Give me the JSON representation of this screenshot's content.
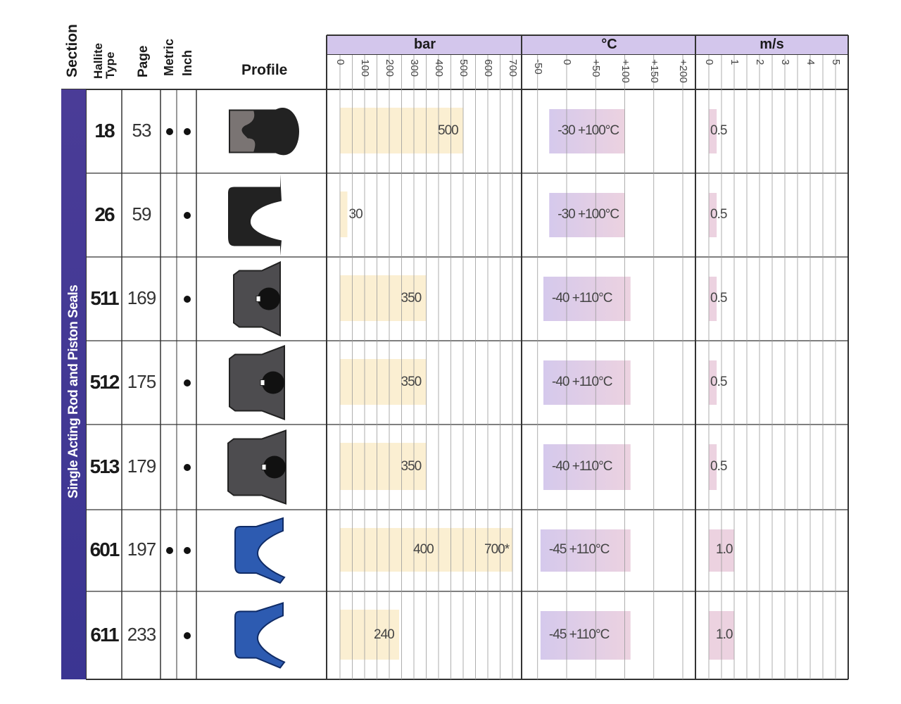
{
  "headers": {
    "section": "Section",
    "hallite_type": "Hallite Type",
    "page": "Page",
    "metric": "Metric",
    "inch": "Inch",
    "profile": "Profile",
    "bar": "bar",
    "temp": "°C",
    "speed": "m/s"
  },
  "section_label": "Single Acting Rod and Piston Seals",
  "bar_ticks": [
    "0",
    "100",
    "200",
    "300",
    "400",
    "500",
    "600",
    "700"
  ],
  "temp_ticks": [
    "-50",
    "0",
    "+50",
    "+100",
    "+150",
    "+200"
  ],
  "speed_ticks": [
    "0",
    "1",
    "2",
    "3",
    "4",
    "5"
  ],
  "colors": {
    "pressure_bar": "#fbefd2",
    "temp_start": "#d5c9ec",
    "temp_end": "#ecd2e0",
    "speed_bar": "#ecd2e0",
    "header_band": "#d3c6ec",
    "section_band": "#433a96",
    "profile_grey": "#7a7473",
    "profile_dark": "#222222",
    "profile_slate": "#4d4c4f",
    "profile_blue": "#2d5bb1"
  },
  "rows": [
    {
      "type": "18",
      "page": "53",
      "metric": true,
      "inch": true,
      "profile_icon": "u-cup-grey-black-icon",
      "bar_max": 500,
      "bar_labels": [
        "500"
      ],
      "temp_min": -30,
      "temp_max": 100,
      "temp_label": "-30 +100°C",
      "speed": 0.5,
      "speed_label": "0.5"
    },
    {
      "type": "26",
      "page": "59",
      "metric": false,
      "inch": true,
      "profile_icon": "u-cup-black-icon",
      "bar_max": 30,
      "bar_labels": [
        "30"
      ],
      "temp_min": -30,
      "temp_max": 100,
      "temp_label": "-30 +100°C",
      "speed": 0.5,
      "speed_label": "0.5"
    },
    {
      "type": "511",
      "page": "169",
      "metric": false,
      "inch": true,
      "profile_icon": "seal-slate-oring-icon",
      "bar_max": 350,
      "bar_labels": [
        "350"
      ],
      "temp_min": -40,
      "temp_max": 110,
      "temp_label": "-40 +110°C",
      "speed": 0.5,
      "speed_label": "0.5"
    },
    {
      "type": "512",
      "page": "175",
      "metric": false,
      "inch": true,
      "profile_icon": "seal-slate-oring-icon",
      "bar_max": 350,
      "bar_labels": [
        "350"
      ],
      "temp_min": -40,
      "temp_max": 110,
      "temp_label": "-40 +110°C",
      "speed": 0.5,
      "speed_label": "0.5"
    },
    {
      "type": "513",
      "page": "179",
      "metric": false,
      "inch": true,
      "profile_icon": "seal-slate-oring-icon",
      "bar_max": 350,
      "bar_labels": [
        "350"
      ],
      "temp_min": -40,
      "temp_max": 110,
      "temp_label": "-40 +110°C",
      "speed": 0.5,
      "speed_label": "0.5"
    },
    {
      "type": "601",
      "page": "197",
      "metric": true,
      "inch": true,
      "profile_icon": "u-cup-blue-icon",
      "bar_max": 700,
      "bar_labels": [
        "400",
        "700*"
      ],
      "temp_min": -45,
      "temp_max": 110,
      "temp_label": "-45 +110°C",
      "speed": 1.0,
      "speed_label": "1.0"
    },
    {
      "type": "611",
      "page": "233",
      "metric": false,
      "inch": true,
      "profile_icon": "u-cup-blue-icon",
      "bar_max": 240,
      "bar_labels": [
        "240"
      ],
      "temp_min": -45,
      "temp_max": 110,
      "temp_label": "-45 +110°C",
      "speed": 1.0,
      "speed_label": "1.0"
    }
  ]
}
